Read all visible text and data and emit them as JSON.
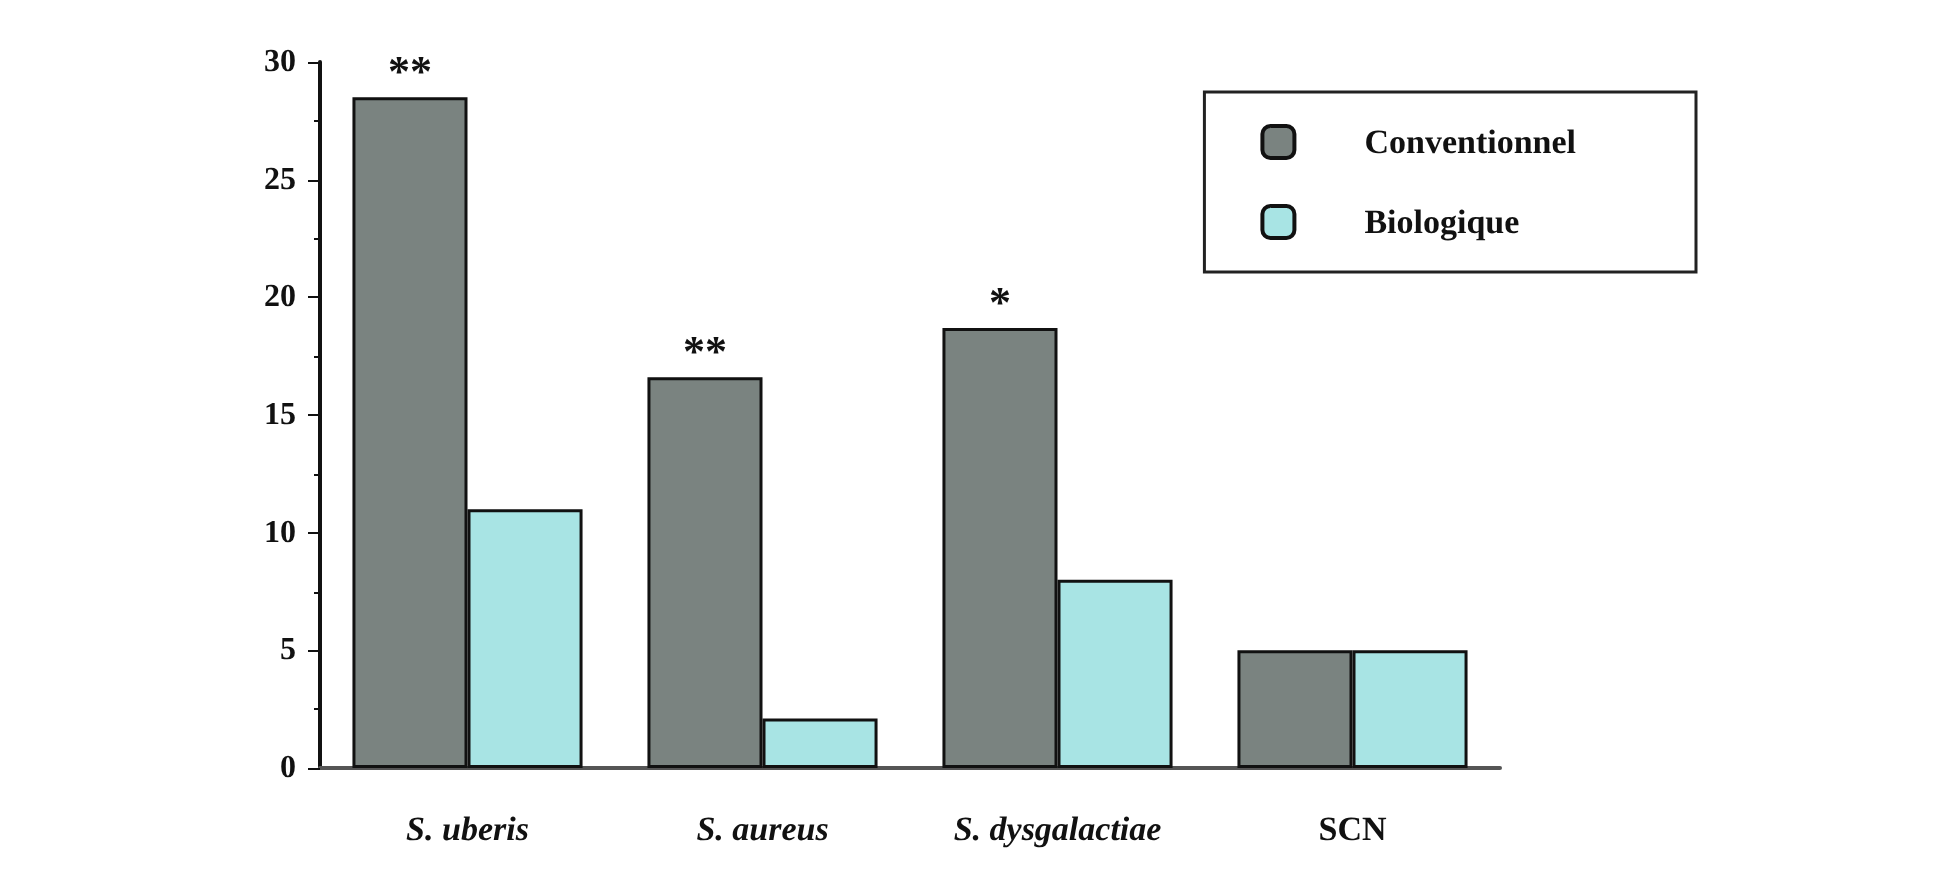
{
  "chart_data": {
    "type": "bar",
    "categories": [
      "S. uberis",
      "S. aureus",
      "S. dysgalactiae",
      "SCN"
    ],
    "series": [
      {
        "name": "Conventionnel",
        "color": "#7a8380",
        "values": [
          28.5,
          16.6,
          18.7,
          5
        ]
      },
      {
        "name": "Biologique",
        "color": "#a8e4e4",
        "values": [
          11,
          2.1,
          8,
          5
        ]
      }
    ],
    "ylim": [
      0,
      30
    ],
    "yticks": [
      0,
      5,
      10,
      15,
      20,
      25,
      30
    ],
    "grid": false,
    "legend": "top right",
    "annotations": [
      {
        "text": "**",
        "x": "S. uberis",
        "y": 28.5
      },
      {
        "text": "**",
        "x": "S. aureus",
        "y": 16.6
      },
      {
        "text": "*",
        "x": "S. dysgalactiae",
        "y": 18.7
      }
    ]
  }
}
